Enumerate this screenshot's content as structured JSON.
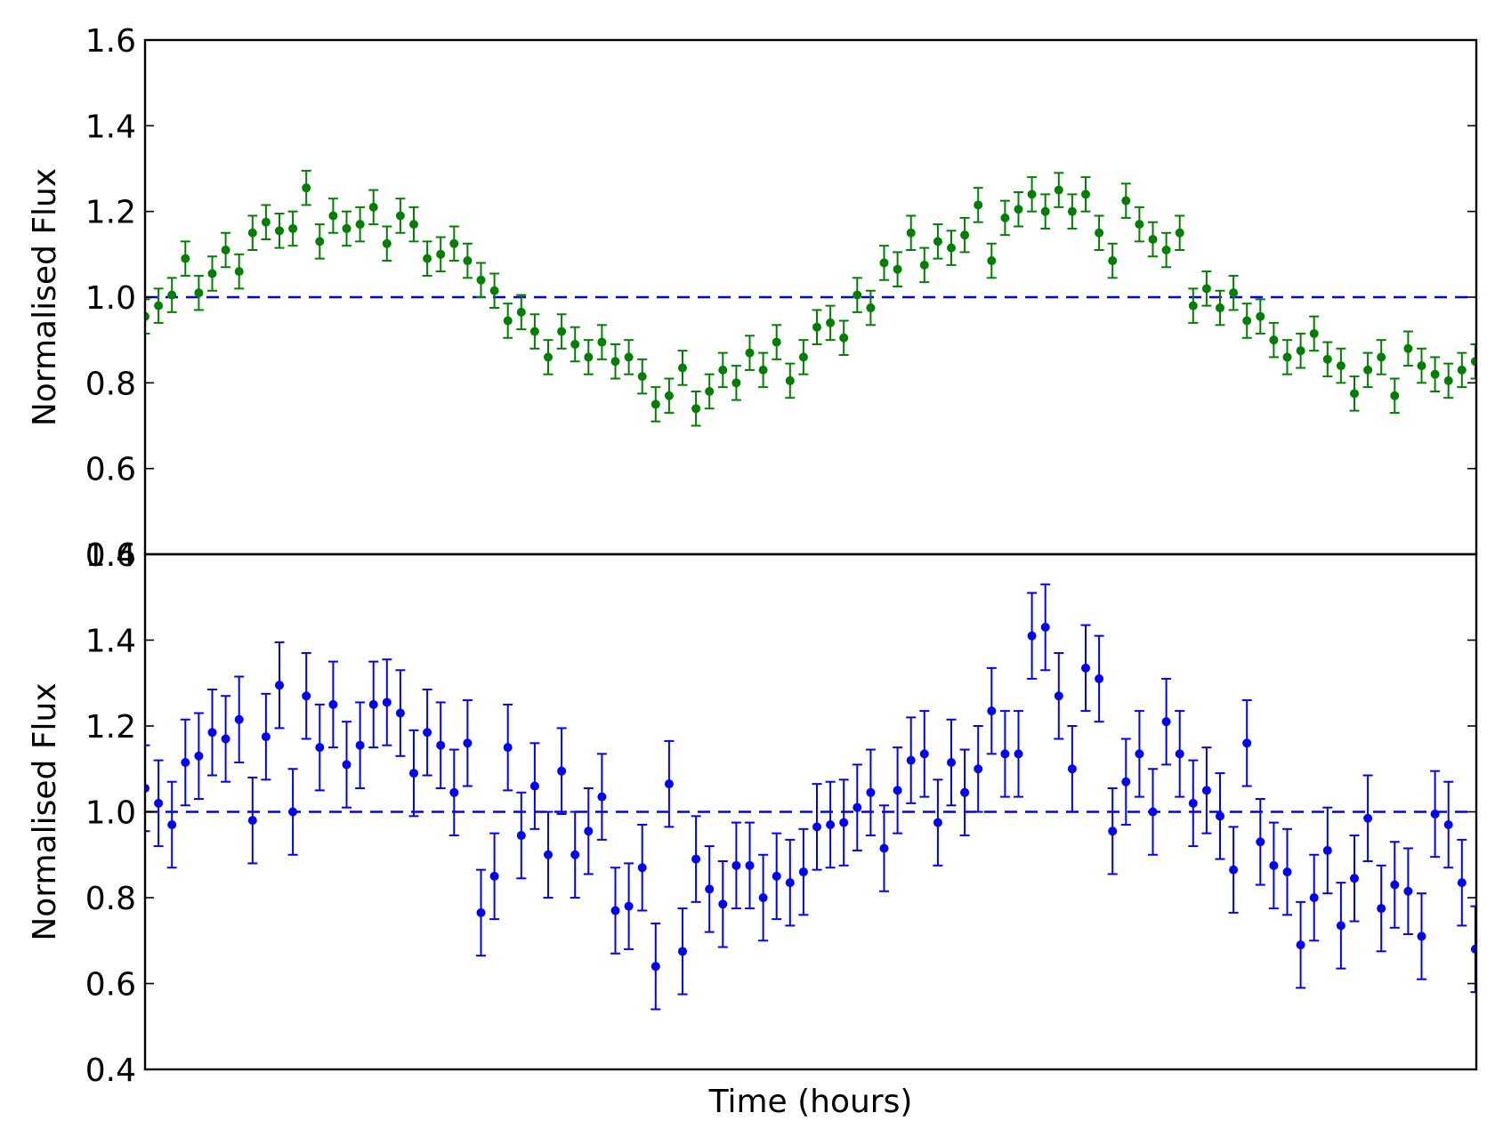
{
  "chart_data": [
    {
      "type": "scatter",
      "panel": "top",
      "ylabel": "Normalised Flux",
      "xlabel": "",
      "ylim": [
        0.4,
        1.6
      ],
      "yticks": [
        "0.4",
        "0.6",
        "0.8",
        "1.0",
        "1.2",
        "1.4",
        "1.6"
      ],
      "xticks": [],
      "grid": false,
      "reference_line": {
        "y": 1.0,
        "style": "dashed",
        "color": "#0000ff"
      },
      "series": [
        {
          "color": "#007f00",
          "error": 0.04,
          "y": [
            0.955,
            0.98,
            1.005,
            1.09,
            1.01,
            1.055,
            1.11,
            1.06,
            1.15,
            1.175,
            1.155,
            1.16,
            1.255,
            1.13,
            1.19,
            1.16,
            1.17,
            1.21,
            1.125,
            1.19,
            1.17,
            1.09,
            1.1,
            1.125,
            1.085,
            1.04,
            1.015,
            0.945,
            0.965,
            0.92,
            0.86,
            0.92,
            0.89,
            0.86,
            0.895,
            0.85,
            0.86,
            0.815,
            0.75,
            0.77,
            0.835,
            0.74,
            0.78,
            0.83,
            0.8,
            0.87,
            0.83,
            0.895,
            0.805,
            0.86,
            0.93,
            0.94,
            0.905,
            1.005,
            0.975,
            1.08,
            1.065,
            1.15,
            1.075,
            1.13,
            1.115,
            1.145,
            1.215,
            1.085,
            1.185,
            1.205,
            1.24,
            1.2,
            1.25,
            1.2,
            1.24,
            1.15,
            1.085,
            1.225,
            1.17,
            1.135,
            1.11,
            1.15,
            0.98,
            1.02,
            0.975,
            1.01,
            0.945,
            0.955,
            0.9,
            0.86,
            0.875,
            0.915,
            0.855,
            0.84,
            0.775,
            0.83,
            0.86,
            0.77,
            0.88,
            0.84,
            0.82,
            0.805,
            0.83,
            0.85
          ]
        }
      ]
    },
    {
      "type": "scatter",
      "panel": "bottom",
      "ylabel": "Normalised Flux",
      "xlabel": "Time (hours)",
      "ylim": [
        0.4,
        1.6
      ],
      "yticks": [
        "0.4",
        "0.6",
        "0.8",
        "1.0",
        "1.2",
        "1.4",
        "1.6"
      ],
      "xticks": [],
      "grid": false,
      "reference_line": {
        "y": 1.0,
        "style": "dashed",
        "color": "#0000ff"
      },
      "series": [
        {
          "color": "#0000ff",
          "error": 0.1,
          "y": [
            1.055,
            1.02,
            0.97,
            1.115,
            1.13,
            1.185,
            1.17,
            1.215,
            0.98,
            1.175,
            1.295,
            1.0,
            1.27,
            1.15,
            1.25,
            1.11,
            1.155,
            1.25,
            1.255,
            1.23,
            1.09,
            1.185,
            1.155,
            1.045,
            1.16,
            0.765,
            0.85,
            1.15,
            0.945,
            1.06,
            0.9,
            1.095,
            0.9,
            0.955,
            1.035,
            0.77,
            0.78,
            0.87,
            0.64,
            1.065,
            0.675,
            0.89,
            0.82,
            0.785,
            0.875,
            0.875,
            0.8,
            0.85,
            0.835,
            0.86,
            0.965,
            0.97,
            0.975,
            1.01,
            1.045,
            0.915,
            1.05,
            1.12,
            1.135,
            0.975,
            1.115,
            1.045,
            1.1,
            1.235,
            1.135,
            1.135,
            1.41,
            1.43,
            1.27,
            1.1,
            1.335,
            1.31,
            0.955,
            1.07,
            1.135,
            1.0,
            1.21,
            1.135,
            1.02,
            1.05,
            0.99,
            0.865,
            1.16,
            0.93,
            0.875,
            0.86,
            0.69,
            0.8,
            0.91,
            0.735,
            0.845,
            0.985,
            0.775,
            0.83,
            0.815,
            0.71,
            0.995,
            0.97,
            0.835,
            0.68
          ]
        }
      ]
    }
  ]
}
